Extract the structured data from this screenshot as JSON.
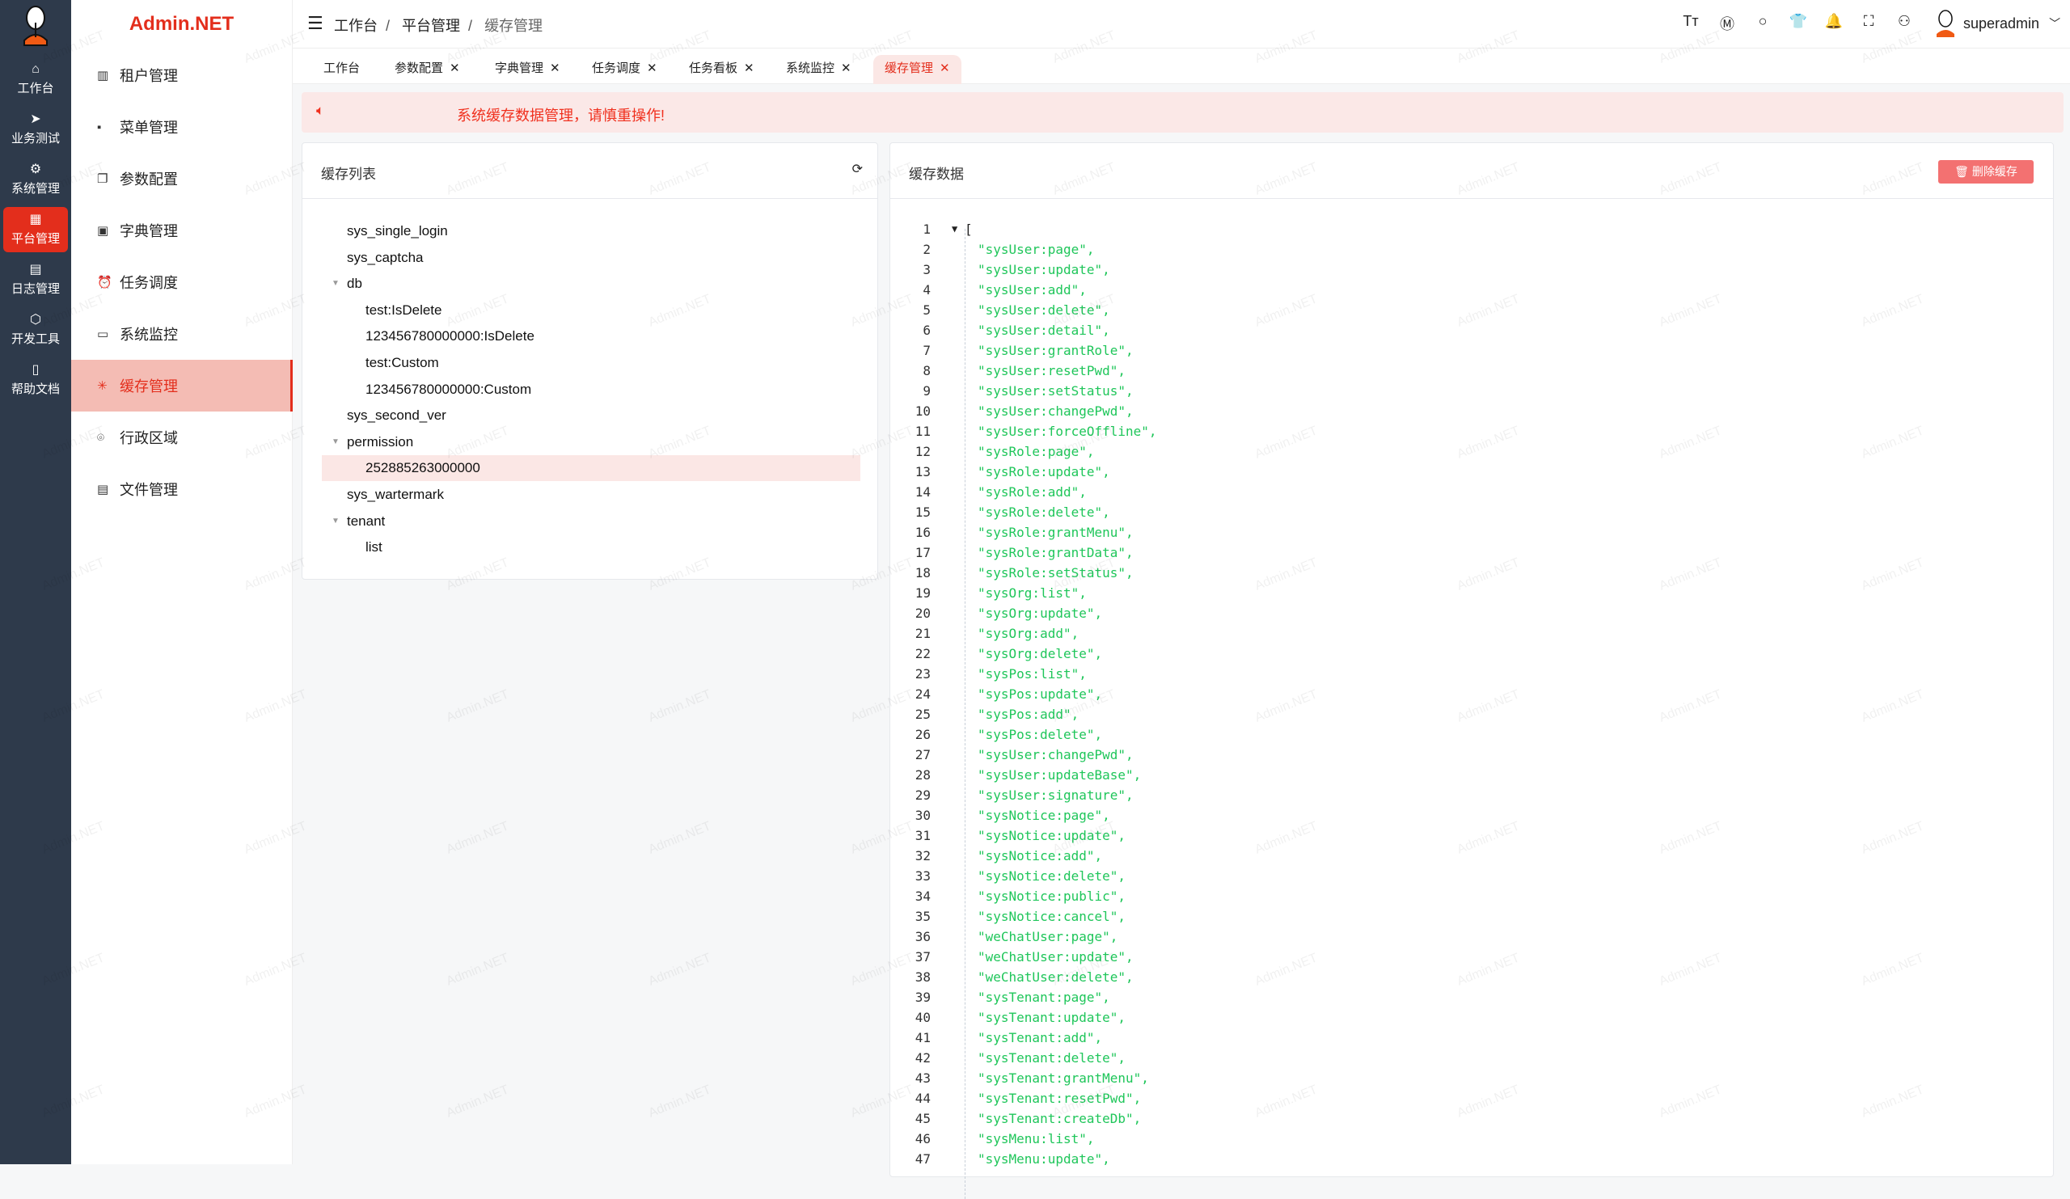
{
  "app": {
    "brand": "Admin.NET",
    "watermark": "Admin.NET"
  },
  "rail": [
    {
      "label": "工作台",
      "icon": "home-icon",
      "glyph": "⌂"
    },
    {
      "label": "业务测试",
      "icon": "send-icon",
      "glyph": "➤"
    },
    {
      "label": "系统管理",
      "icon": "gear-icon",
      "glyph": "⚙"
    },
    {
      "label": "平台管理",
      "icon": "grid-icon",
      "glyph": "▦",
      "active": true
    },
    {
      "label": "日志管理",
      "icon": "document-icon",
      "glyph": "▤"
    },
    {
      "label": "开发工具",
      "icon": "chip-icon",
      "glyph": "⬡"
    },
    {
      "label": "帮助文档",
      "icon": "book-icon",
      "glyph": "▯"
    }
  ],
  "menu": [
    {
      "label": "租户管理",
      "icon": "building-icon",
      "glyph": "▥"
    },
    {
      "label": "菜单管理",
      "icon": "grid-icon",
      "glyph": "▪"
    },
    {
      "label": "参数配置",
      "icon": "copy-icon",
      "glyph": "❐"
    },
    {
      "label": "字典管理",
      "icon": "dictionary-icon",
      "glyph": "▣"
    },
    {
      "label": "任务调度",
      "icon": "alarm-clock-icon",
      "glyph": "⏰"
    },
    {
      "label": "系统监控",
      "icon": "monitor-icon",
      "glyph": "▭"
    },
    {
      "label": "缓存管理",
      "icon": "loading-icon",
      "glyph": "✳",
      "active": true
    },
    {
      "label": "行政区域",
      "icon": "location-icon",
      "glyph": "⌾"
    },
    {
      "label": "文件管理",
      "icon": "file-icon",
      "glyph": "▤"
    }
  ],
  "breadcrumb": [
    "工作台",
    "平台管理",
    "缓存管理"
  ],
  "header_icons": [
    {
      "name": "font-size-icon",
      "glyph": "Tт"
    },
    {
      "name": "language-icon",
      "glyph": "Ⓜ"
    },
    {
      "name": "search-icon",
      "glyph": "○"
    },
    {
      "name": "theme-shirt-icon",
      "glyph": "👕"
    },
    {
      "name": "bell-icon",
      "glyph": "🔔"
    },
    {
      "name": "fullscreen-icon",
      "glyph": "⛶"
    },
    {
      "name": "user-icon",
      "glyph": "⚇"
    }
  ],
  "user": {
    "name": "superadmin"
  },
  "tabs": [
    {
      "label": "工作台",
      "closable": false
    },
    {
      "label": "参数配置",
      "closable": true
    },
    {
      "label": "字典管理",
      "closable": true
    },
    {
      "label": "任务调度",
      "closable": true
    },
    {
      "label": "任务看板",
      "closable": true
    },
    {
      "label": "系统监控",
      "closable": true
    },
    {
      "label": "缓存管理",
      "closable": true,
      "active": true
    }
  ],
  "tab_close": "✕",
  "notice": {
    "text": "系统缓存数据管理，请慎重操作!"
  },
  "cache_list": {
    "title": "缓存列表",
    "tree": [
      {
        "label": "sys_single_login",
        "level": 0
      },
      {
        "label": "sys_captcha",
        "level": 0
      },
      {
        "label": "db",
        "level": 0,
        "expanded": true
      },
      {
        "label": "test:IsDelete",
        "level": 1
      },
      {
        "label": "123456780000000:IsDelete",
        "level": 1
      },
      {
        "label": "test:Custom",
        "level": 1
      },
      {
        "label": "123456780000000:Custom",
        "level": 1
      },
      {
        "label": "sys_second_ver",
        "level": 0
      },
      {
        "label": "permission",
        "level": 0,
        "expanded": true
      },
      {
        "label": "252885263000000",
        "level": 1,
        "selected": true
      },
      {
        "label": "sys_wartermark",
        "level": 0
      },
      {
        "label": "tenant",
        "level": 0,
        "expanded": true
      },
      {
        "label": "list",
        "level": 1
      }
    ]
  },
  "cache_data": {
    "title": "缓存数据",
    "delete_label": "删除缓存",
    "lines": [
      "[",
      "\"sysUser:page\",",
      "\"sysUser:update\",",
      "\"sysUser:add\",",
      "\"sysUser:delete\",",
      "\"sysUser:detail\",",
      "\"sysUser:grantRole\",",
      "\"sysUser:resetPwd\",",
      "\"sysUser:setStatus\",",
      "\"sysUser:changePwd\",",
      "\"sysUser:forceOffline\",",
      "\"sysRole:page\",",
      "\"sysRole:update\",",
      "\"sysRole:add\",",
      "\"sysRole:delete\",",
      "\"sysRole:grantMenu\",",
      "\"sysRole:grantData\",",
      "\"sysRole:setStatus\",",
      "\"sysOrg:list\",",
      "\"sysOrg:update\",",
      "\"sysOrg:add\",",
      "\"sysOrg:delete\",",
      "\"sysPos:list\",",
      "\"sysPos:update\",",
      "\"sysPos:add\",",
      "\"sysPos:delete\",",
      "\"sysUser:changePwd\",",
      "\"sysUser:updateBase\",",
      "\"sysUser:signature\",",
      "\"sysNotice:page\",",
      "\"sysNotice:update\",",
      "\"sysNotice:add\",",
      "\"sysNotice:delete\",",
      "\"sysNotice:public\",",
      "\"sysNotice:cancel\",",
      "\"weChatUser:page\",",
      "\"weChatUser:update\",",
      "\"weChatUser:delete\",",
      "\"sysTenant:page\",",
      "\"sysTenant:update\",",
      "\"sysTenant:add\",",
      "\"sysTenant:delete\",",
      "\"sysTenant:grantMenu\",",
      "\"sysTenant:resetPwd\",",
      "\"sysTenant:createDb\",",
      "\"sysMenu:list\",",
      "\"sysMenu:update\","
    ]
  },
  "colors": {
    "accent": "#e32e1c",
    "string": "#1fc65a",
    "danger_button": "#f37171",
    "notice_bg": "#fbe8e7"
  }
}
